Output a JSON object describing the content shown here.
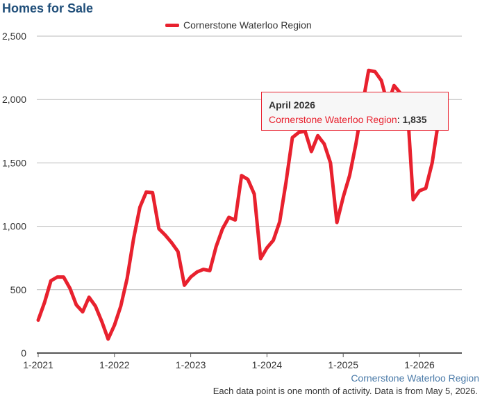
{
  "header": {
    "title": "Homes for Sale"
  },
  "colors": {
    "series": "#e8212e",
    "grid": "#b8b8b8",
    "axis": "#555555",
    "text": "#333333",
    "credit": "#4a7aa8"
  },
  "tooltip": {
    "title": "April 2026",
    "series": "Cornerstone Waterloo Region",
    "value": "1,835"
  },
  "footer": {
    "credit": "Cornerstone Waterloo Region",
    "note": "Each data point is one month of activity. Data is from May 5, 2026."
  },
  "chart_data": {
    "type": "line",
    "title": "Homes for Sale",
    "xlabel": "",
    "ylabel": "",
    "ylim": [
      0,
      2500
    ],
    "yticks": [
      0,
      500,
      1000,
      1500,
      2000,
      2500
    ],
    "ytick_labels": [
      "0",
      "500",
      "1,000",
      "1,500",
      "2,000",
      "2,500"
    ],
    "xtick_labels": [
      "1-2021",
      "1-2022",
      "1-2023",
      "1-2024",
      "1-2025",
      "1-2026"
    ],
    "grid": true,
    "legend": "top-center",
    "x": [
      "2021-01",
      "2021-02",
      "2021-03",
      "2021-04",
      "2021-05",
      "2021-06",
      "2021-07",
      "2021-08",
      "2021-09",
      "2021-10",
      "2021-11",
      "2021-12",
      "2022-01",
      "2022-02",
      "2022-03",
      "2022-04",
      "2022-05",
      "2022-06",
      "2022-07",
      "2022-08",
      "2022-09",
      "2022-10",
      "2022-11",
      "2022-12",
      "2023-01",
      "2023-02",
      "2023-03",
      "2023-04",
      "2023-05",
      "2023-06",
      "2023-07",
      "2023-08",
      "2023-09",
      "2023-10",
      "2023-11",
      "2023-12",
      "2024-01",
      "2024-02",
      "2024-03",
      "2024-04",
      "2024-05",
      "2024-06",
      "2024-07",
      "2024-08",
      "2024-09",
      "2024-10",
      "2024-11",
      "2024-12",
      "2025-01",
      "2025-02",
      "2025-03",
      "2025-04",
      "2025-05",
      "2025-06",
      "2025-07",
      "2025-08",
      "2025-09",
      "2025-10",
      "2025-11",
      "2025-12",
      "2026-01",
      "2026-02",
      "2026-03",
      "2026-04"
    ],
    "series": [
      {
        "name": "Cornerstone Waterloo Region",
        "values": [
          260,
          400,
          570,
          600,
          600,
          510,
          380,
          325,
          440,
          370,
          250,
          110,
          220,
          370,
          590,
          900,
          1150,
          1270,
          1265,
          980,
          930,
          870,
          800,
          535,
          600,
          640,
          660,
          650,
          840,
          980,
          1070,
          1050,
          1400,
          1370,
          1255,
          745,
          830,
          890,
          1035,
          1350,
          1700,
          1740,
          1750,
          1590,
          1715,
          1650,
          1500,
          1030,
          1230,
          1400,
          1650,
          1950,
          2230,
          2220,
          2150,
          1960,
          2110,
          2050,
          2020,
          1210,
          1280,
          1300,
          1500,
          1835
        ]
      }
    ]
  }
}
